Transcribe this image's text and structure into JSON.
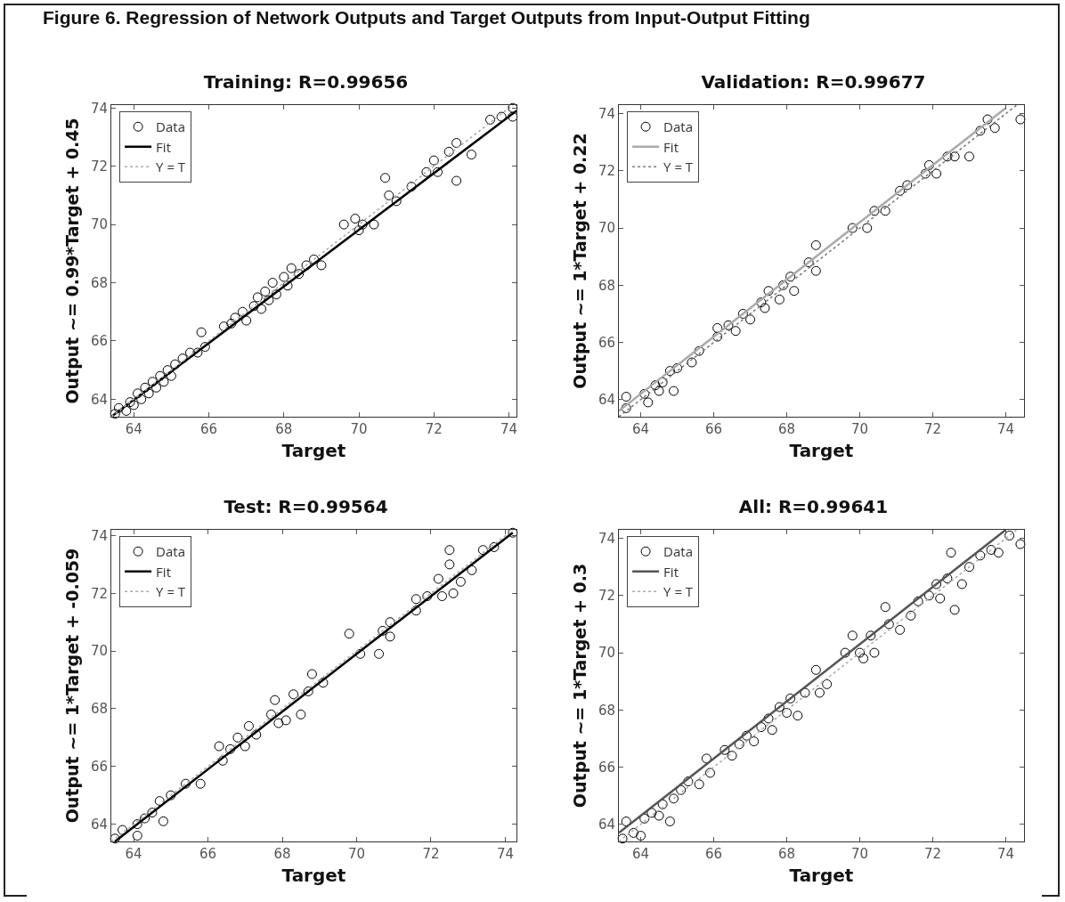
{
  "chart_data": [
    {
      "type": "scatter",
      "title": "Training: R=0.99656",
      "xlabel": "Target",
      "ylabel": "Output ~= 0.99*Target + 0.45",
      "annotations": [
        "Figure 6. Regression of Network Outputs and Target Outputs from Input-Output Fitting"
      ],
      "xlim": [
        63.4,
        74.2
      ],
      "ylim": [
        63.4,
        74.1
      ],
      "xticks": [
        64,
        66,
        68,
        70,
        72,
        74
      ],
      "yticks": [
        64,
        66,
        68,
        70,
        72,
        74
      ],
      "grid": false,
      "legend": "top left",
      "series": [
        {
          "name": "Data",
          "marker": "circle",
          "color": "#000000",
          "x": [
            63.5,
            63.6,
            63.8,
            63.9,
            64.0,
            64.1,
            64.2,
            64.3,
            64.4,
            64.5,
            64.6,
            64.7,
            64.8,
            64.9,
            65.0,
            65.1,
            65.3,
            65.5,
            65.7,
            65.8,
            65.9,
            66.4,
            66.6,
            66.7,
            66.9,
            67.0,
            67.2,
            67.3,
            67.4,
            67.5,
            67.6,
            67.7,
            67.8,
            68.0,
            68.1,
            68.2,
            68.4,
            68.6,
            68.8,
            69.0,
            69.6,
            69.9,
            70.0,
            70.1,
            70.4,
            70.7,
            70.8,
            71.0,
            71.4,
            71.8,
            72.0,
            72.1,
            72.4,
            72.6,
            72.6,
            73.0,
            73.5,
            73.8,
            74.1,
            74.1
          ],
          "values": [
            63.5,
            63.7,
            63.6,
            63.9,
            63.8,
            64.2,
            64.0,
            64.4,
            64.2,
            64.6,
            64.4,
            64.8,
            64.6,
            65.0,
            64.8,
            65.2,
            65.4,
            65.6,
            65.6,
            66.3,
            65.8,
            66.5,
            66.6,
            66.8,
            67.0,
            66.7,
            67.2,
            67.5,
            67.1,
            67.7,
            67.4,
            68.0,
            67.6,
            68.2,
            67.9,
            68.5,
            68.3,
            68.6,
            68.8,
            68.6,
            70.0,
            70.2,
            69.8,
            70.0,
            70.0,
            71.6,
            71.0,
            70.8,
            71.3,
            71.8,
            72.2,
            71.8,
            72.5,
            71.5,
            72.8,
            72.4,
            73.6,
            73.7,
            74.0,
            73.7
          ]
        },
        {
          "name": "Fit",
          "type": "line",
          "color": "#000000",
          "line_style": "solid",
          "x": [
            63.4,
            74.2
          ],
          "values": [
            63.4,
            73.9
          ]
        },
        {
          "name": "Y = T",
          "type": "line",
          "color": "#aaaaaa",
          "line_style": "dotted",
          "x": [
            63.4,
            74.1
          ],
          "values": [
            63.4,
            74.1
          ]
        }
      ]
    },
    {
      "type": "scatter",
      "title": "Validation: R=0.99677",
      "xlabel": "Target",
      "ylabel": "Output ~= 1*Target + 0.22",
      "xlim": [
        63.4,
        74.5
      ],
      "ylim": [
        63.4,
        74.3
      ],
      "xticks": [
        64,
        66,
        68,
        70,
        72,
        74
      ],
      "yticks": [
        64,
        66,
        68,
        70,
        72,
        74
      ],
      "grid": false,
      "legend": "top left",
      "series": [
        {
          "name": "Data",
          "marker": "circle",
          "color": "#000000",
          "x": [
            63.6,
            63.6,
            64.1,
            64.2,
            64.4,
            64.5,
            64.6,
            64.8,
            64.9,
            65.0,
            65.4,
            65.6,
            66.1,
            66.1,
            66.4,
            66.6,
            66.8,
            67.0,
            67.3,
            67.4,
            67.5,
            67.8,
            67.9,
            68.1,
            68.2,
            68.6,
            68.8,
            68.8,
            69.8,
            70.2,
            70.4,
            70.7,
            71.1,
            71.3,
            71.8,
            71.9,
            72.1,
            72.4,
            72.6,
            73.0,
            73.3,
            73.5,
            73.7,
            74.4
          ],
          "values": [
            64.1,
            63.7,
            64.2,
            63.9,
            64.5,
            64.3,
            64.6,
            65.0,
            64.3,
            65.1,
            65.3,
            65.7,
            66.5,
            66.2,
            66.6,
            66.4,
            67.0,
            66.8,
            67.4,
            67.2,
            67.8,
            67.5,
            68.0,
            68.3,
            67.8,
            68.8,
            69.4,
            68.5,
            70.0,
            70.0,
            70.6,
            70.6,
            71.3,
            71.5,
            71.9,
            72.2,
            71.9,
            72.5,
            72.5,
            72.5,
            73.4,
            73.8,
            73.5,
            73.8
          ]
        },
        {
          "name": "Fit",
          "type": "line",
          "color": "#aaaaaa",
          "line_style": "solid",
          "x": [
            63.4,
            74.0
          ],
          "values": [
            63.6,
            74.2
          ]
        },
        {
          "name": "Y = T",
          "type": "line",
          "color": "#777777",
          "line_style": "dotted",
          "x": [
            63.4,
            74.3
          ],
          "values": [
            63.4,
            74.3
          ]
        }
      ]
    },
    {
      "type": "scatter",
      "title": "Test: R=0.99564",
      "xlabel": "Target",
      "ylabel": "Output ~= 1*Target + -0.059",
      "xlim": [
        63.4,
        74.3
      ],
      "ylim": [
        63.4,
        74.2
      ],
      "xticks": [
        64,
        66,
        68,
        70,
        72,
        74
      ],
      "yticks": [
        64,
        66,
        68,
        70,
        72,
        74
      ],
      "grid": false,
      "legend": "top left",
      "series": [
        {
          "name": "Data",
          "marker": "circle",
          "color": "#000000",
          "x": [
            63.5,
            63.7,
            64.1,
            64.1,
            64.3,
            64.5,
            64.7,
            64.8,
            65.0,
            65.4,
            65.8,
            66.3,
            66.4,
            66.6,
            66.8,
            67.0,
            67.1,
            67.3,
            67.7,
            67.8,
            67.9,
            68.1,
            68.3,
            68.5,
            68.7,
            68.8,
            69.1,
            69.8,
            70.1,
            70.6,
            70.7,
            70.9,
            70.9,
            71.6,
            71.6,
            71.9,
            72.2,
            72.3,
            72.5,
            72.5,
            72.6,
            72.8,
            73.1,
            73.4,
            73.7,
            74.2
          ],
          "values": [
            63.5,
            63.8,
            63.6,
            64.0,
            64.2,
            64.4,
            64.8,
            64.1,
            65.0,
            65.4,
            65.4,
            66.7,
            66.2,
            66.6,
            67.0,
            66.7,
            67.4,
            67.1,
            67.8,
            68.3,
            67.5,
            67.6,
            68.5,
            67.8,
            68.6,
            69.2,
            68.9,
            70.6,
            69.9,
            69.9,
            70.7,
            71.0,
            70.5,
            71.8,
            71.4,
            71.9,
            72.5,
            71.9,
            73.5,
            73.0,
            72.0,
            72.4,
            72.8,
            73.5,
            73.6,
            74.1
          ]
        },
        {
          "name": "Fit",
          "type": "line",
          "color": "#000000",
          "line_style": "solid",
          "x": [
            63.5,
            74.2
          ],
          "values": [
            63.4,
            74.1
          ]
        },
        {
          "name": "Y = T",
          "type": "line",
          "color": "#aaaaaa",
          "line_style": "dotted",
          "x": [
            63.4,
            74.2
          ],
          "values": [
            63.4,
            74.2
          ]
        }
      ]
    },
    {
      "type": "scatter",
      "title": "All: R=0.99641",
      "xlabel": "Target",
      "ylabel": "Output ~= 1*Target + 0.3",
      "xlim": [
        63.4,
        74.5
      ],
      "ylim": [
        63.4,
        74.3
      ],
      "xticks": [
        64,
        66,
        68,
        70,
        72,
        74
      ],
      "yticks": [
        64,
        66,
        68,
        70,
        72,
        74
      ],
      "grid": false,
      "legend": "top left",
      "series": [
        {
          "name": "Data",
          "marker": "circle",
          "color": "#000000",
          "x": [
            63.5,
            63.6,
            63.8,
            64.0,
            64.1,
            64.3,
            64.5,
            64.6,
            64.8,
            64.9,
            65.1,
            65.3,
            65.6,
            65.8,
            65.9,
            66.3,
            66.5,
            66.7,
            66.9,
            67.1,
            67.3,
            67.5,
            67.6,
            67.8,
            68.0,
            68.1,
            68.3,
            68.5,
            68.8,
            68.9,
            69.1,
            69.6,
            69.8,
            70.0,
            70.1,
            70.3,
            70.4,
            70.7,
            70.8,
            71.1,
            71.4,
            71.6,
            71.9,
            72.1,
            72.2,
            72.4,
            72.5,
            72.6,
            72.8,
            73.0,
            73.3,
            73.6,
            73.8,
            74.1,
            74.4
          ],
          "values": [
            63.5,
            64.1,
            63.7,
            63.6,
            64.2,
            64.4,
            64.3,
            64.7,
            64.1,
            64.9,
            65.2,
            65.5,
            65.4,
            66.3,
            65.8,
            66.6,
            66.4,
            66.8,
            67.1,
            66.9,
            67.4,
            67.7,
            67.3,
            68.1,
            67.9,
            68.4,
            67.8,
            68.6,
            69.4,
            68.6,
            68.9,
            70.0,
            70.6,
            70.0,
            69.8,
            70.6,
            70.0,
            71.6,
            71.0,
            70.8,
            71.3,
            71.8,
            72.0,
            72.4,
            71.9,
            72.6,
            73.5,
            71.5,
            72.4,
            73.0,
            73.4,
            73.6,
            73.5,
            74.1,
            73.8
          ]
        },
        {
          "name": "Fit",
          "type": "line",
          "color": "#555555",
          "line_style": "solid",
          "x": [
            63.4,
            74.0
          ],
          "values": [
            63.7,
            74.3
          ]
        },
        {
          "name": "Y = T",
          "type": "line",
          "color": "#aaaaaa",
          "line_style": "dotted",
          "x": [
            63.4,
            74.3
          ],
          "values": [
            63.4,
            74.3
          ]
        }
      ]
    }
  ]
}
